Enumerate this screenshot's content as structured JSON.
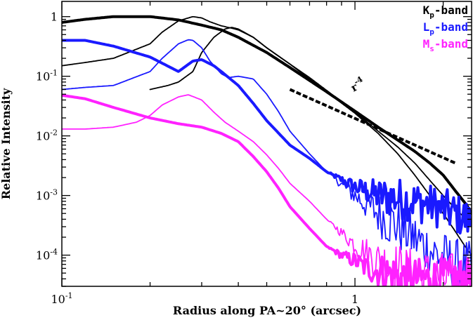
{
  "chart_data": {
    "type": "line",
    "xlabel": "Radius along PA~20° (arcsec)",
    "ylabel": "Relative Intensity",
    "xscale": "log",
    "yscale": "log",
    "xlim": [
      0.1,
      2.5
    ],
    "ylim": [
      3e-05,
      1.8
    ],
    "x_tick_labels": [
      {
        "value": 0.1,
        "base": "10",
        "exp": "-1"
      },
      {
        "value": 1,
        "base": "1",
        "exp": ""
      }
    ],
    "y_tick_labels": [
      {
        "value": 1,
        "base": "1",
        "exp": ""
      },
      {
        "value": 0.1,
        "base": "10",
        "exp": "-1"
      },
      {
        "value": 0.01,
        "base": "10",
        "exp": "-2"
      },
      {
        "value": 0.001,
        "base": "10",
        "exp": "-3"
      },
      {
        "value": 0.0001,
        "base": "10",
        "exp": "-4"
      }
    ],
    "legend_position": "top-right",
    "legend": [
      {
        "name": "K",
        "sub": "p",
        "suffix": "-band",
        "color": "#000000"
      },
      {
        "name": "L",
        "sub": "p",
        "suffix": "-band",
        "color": "#1a1aff"
      },
      {
        "name": "M",
        "sub": "s",
        "suffix": "-band",
        "color": "#ff22ff"
      }
    ],
    "annotation": {
      "base": "r",
      "exp": "-4"
    },
    "reference_line": {
      "label": "r^-4",
      "x": [
        0.6,
        2.2
      ],
      "y": [
        0.06,
        0.0035
      ],
      "color": "#000000",
      "style": "dashed"
    },
    "series": [
      {
        "name": "Kp thick",
        "color": "#000000",
        "weight": "thick",
        "noise": 0.0,
        "x": [
          0.1,
          0.12,
          0.15,
          0.2,
          0.25,
          0.3,
          0.35,
          0.4,
          0.5,
          0.6,
          0.7,
          0.8,
          1.0,
          1.2,
          1.4,
          1.6,
          1.8,
          2.0,
          2.2,
          2.4,
          2.5
        ],
        "y": [
          0.8,
          0.9,
          1.0,
          1.0,
          0.88,
          0.72,
          0.6,
          0.45,
          0.25,
          0.14,
          0.085,
          0.055,
          0.026,
          0.014,
          0.0085,
          0.0055,
          0.0035,
          0.0022,
          0.0012,
          0.0007,
          0.0005
        ]
      },
      {
        "name": "Kp thin 1",
        "color": "#000000",
        "weight": "thin",
        "noise": 0.0,
        "x": [
          0.1,
          0.12,
          0.15,
          0.2,
          0.22,
          0.25,
          0.28,
          0.3,
          0.32,
          0.35,
          0.38,
          0.4,
          0.45,
          0.5,
          0.6,
          0.7,
          0.8,
          1.0,
          1.2,
          1.4,
          1.6,
          1.8,
          2.0,
          2.2,
          2.4,
          2.5
        ],
        "y": [
          0.15,
          0.17,
          0.2,
          0.35,
          0.55,
          0.85,
          1.0,
          0.95,
          0.82,
          0.7,
          0.64,
          0.6,
          0.45,
          0.3,
          0.16,
          0.095,
          0.058,
          0.025,
          0.012,
          0.0065,
          0.0035,
          0.0018,
          0.001,
          0.0006,
          0.0004,
          0.0003
        ]
      },
      {
        "name": "Kp thin 2",
        "color": "#000000",
        "weight": "thin",
        "noise": 0.0,
        "x": [
          0.2,
          0.23,
          0.25,
          0.28,
          0.3,
          0.33,
          0.36,
          0.38,
          0.4,
          0.45,
          0.5,
          0.6,
          0.7,
          0.8,
          1.0,
          1.2,
          1.4,
          1.6,
          1.8,
          2.0,
          2.2,
          2.4,
          2.5
        ],
        "y": [
          0.06,
          0.07,
          0.08,
          0.12,
          0.25,
          0.45,
          0.62,
          0.66,
          0.62,
          0.45,
          0.3,
          0.16,
          0.09,
          0.055,
          0.024,
          0.011,
          0.005,
          0.0022,
          0.001,
          0.0005,
          0.00025,
          0.00013,
          0.0001
        ]
      },
      {
        "name": "Lp thick",
        "color": "#1a1aff",
        "weight": "thick",
        "noise": 0.35,
        "x": [
          0.1,
          0.12,
          0.15,
          0.2,
          0.25,
          0.28,
          0.3,
          0.33,
          0.35,
          0.4,
          0.45,
          0.5,
          0.55,
          0.6,
          0.7,
          0.8,
          1.0,
          1.2,
          1.5,
          1.8,
          2.0,
          2.2,
          2.4,
          2.5
        ],
        "y": [
          0.4,
          0.4,
          0.32,
          0.21,
          0.12,
          0.18,
          0.19,
          0.15,
          0.12,
          0.07,
          0.035,
          0.018,
          0.011,
          0.007,
          0.0042,
          0.0025,
          0.0014,
          0.001,
          0.00085,
          0.0007,
          0.0006,
          0.0005,
          0.0004,
          0.00035
        ]
      },
      {
        "name": "Lp thin",
        "color": "#1a1aff",
        "weight": "thin",
        "noise": 0.45,
        "x": [
          0.1,
          0.12,
          0.15,
          0.2,
          0.22,
          0.25,
          0.27,
          0.28,
          0.3,
          0.32,
          0.35,
          0.37,
          0.4,
          0.45,
          0.5,
          0.55,
          0.6,
          0.7,
          0.8,
          1.0,
          1.2,
          1.5,
          1.8,
          2.0,
          2.2,
          2.5
        ],
        "y": [
          0.06,
          0.065,
          0.07,
          0.12,
          0.2,
          0.35,
          0.41,
          0.4,
          0.3,
          0.18,
          0.11,
          0.095,
          0.1,
          0.09,
          0.05,
          0.025,
          0.012,
          0.005,
          0.0025,
          0.001,
          0.0005,
          0.00025,
          0.00012,
          9e-05,
          7e-05,
          6e-05
        ]
      },
      {
        "name": "Ms thick",
        "color": "#ff22ff",
        "weight": "thick",
        "noise": 0.35,
        "x": [
          0.1,
          0.12,
          0.15,
          0.2,
          0.25,
          0.3,
          0.35,
          0.4,
          0.45,
          0.5,
          0.55,
          0.6,
          0.7,
          0.8,
          0.9,
          1.0,
          1.1,
          1.3,
          1.5,
          2.0,
          2.5
        ],
        "y": [
          0.048,
          0.042,
          0.03,
          0.02,
          0.016,
          0.014,
          0.011,
          0.008,
          0.0045,
          0.0025,
          0.0013,
          0.00065,
          0.00028,
          0.00014,
          0.0001,
          8e-05,
          6e-05,
          5e-05,
          4e-05,
          4e-05,
          4e-05
        ]
      },
      {
        "name": "Ms thin",
        "color": "#ff22ff",
        "weight": "thin",
        "noise": 0.45,
        "x": [
          0.1,
          0.12,
          0.15,
          0.18,
          0.2,
          0.22,
          0.25,
          0.27,
          0.3,
          0.33,
          0.36,
          0.4,
          0.45,
          0.5,
          0.55,
          0.6,
          0.7,
          0.8,
          1.0,
          1.2,
          1.5,
          2.0,
          2.5
        ],
        "y": [
          0.013,
          0.013,
          0.014,
          0.017,
          0.022,
          0.033,
          0.045,
          0.049,
          0.04,
          0.025,
          0.017,
          0.012,
          0.008,
          0.0048,
          0.0028,
          0.0016,
          0.0008,
          0.0004,
          0.00015,
          8e-05,
          5e-05,
          4e-05,
          4e-05
        ]
      }
    ]
  }
}
